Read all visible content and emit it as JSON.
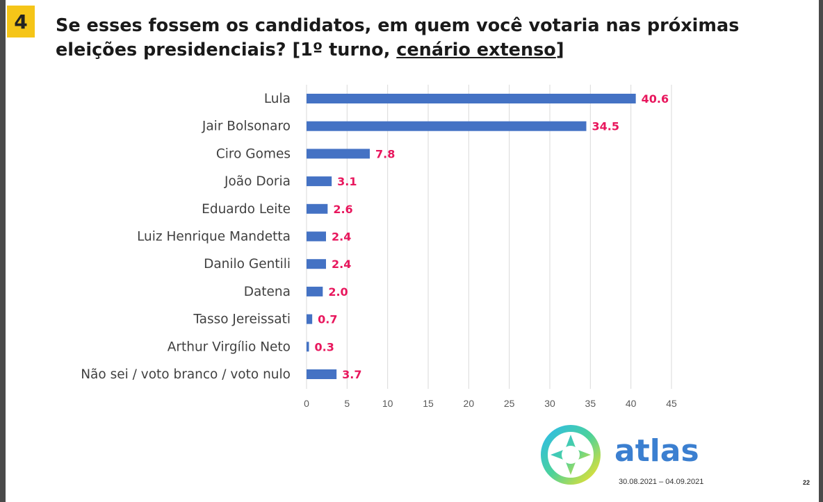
{
  "slide": {
    "number": "4"
  },
  "title": {
    "main": "Se esses fossem os candidatos, em quem você votaria nas próximas eleições presidenciais? [1º turno, ",
    "underlined": "cenário extenso",
    "closing": "]"
  },
  "chart_data": {
    "type": "bar",
    "orientation": "horizontal",
    "categories": [
      "Lula",
      "Jair Bolsonaro",
      "Ciro Gomes",
      "João Doria",
      "Eduardo Leite",
      "Luiz Henrique Mandetta",
      "Danilo Gentili",
      "Datena",
      "Tasso Jereissati",
      "Arthur Virgílio Neto",
      "Não sei / voto branco / voto nulo"
    ],
    "values": [
      40.6,
      34.5,
      7.8,
      3.1,
      2.6,
      2.4,
      2.4,
      2.0,
      0.7,
      0.3,
      3.7
    ],
    "value_labels": [
      "40.6",
      "34.5",
      "7.8",
      "3.1",
      "2.6",
      "2.4",
      "2.4",
      "2.0",
      "0.7",
      "0.3",
      "3.7"
    ],
    "xlim": [
      0,
      45
    ],
    "xticks": [
      "0",
      "5",
      "10",
      "15",
      "20",
      "25",
      "30",
      "35",
      "40",
      "45"
    ],
    "grid": true,
    "bar_color": "#4472c4",
    "label_color": "#e8175d",
    "title": "",
    "xlabel": "",
    "ylabel": ""
  },
  "footer": {
    "brand": "atlas",
    "dates": "30.08.2021 – 04.09.2021",
    "page": "22",
    "brand_color": "#3b7fd0"
  }
}
